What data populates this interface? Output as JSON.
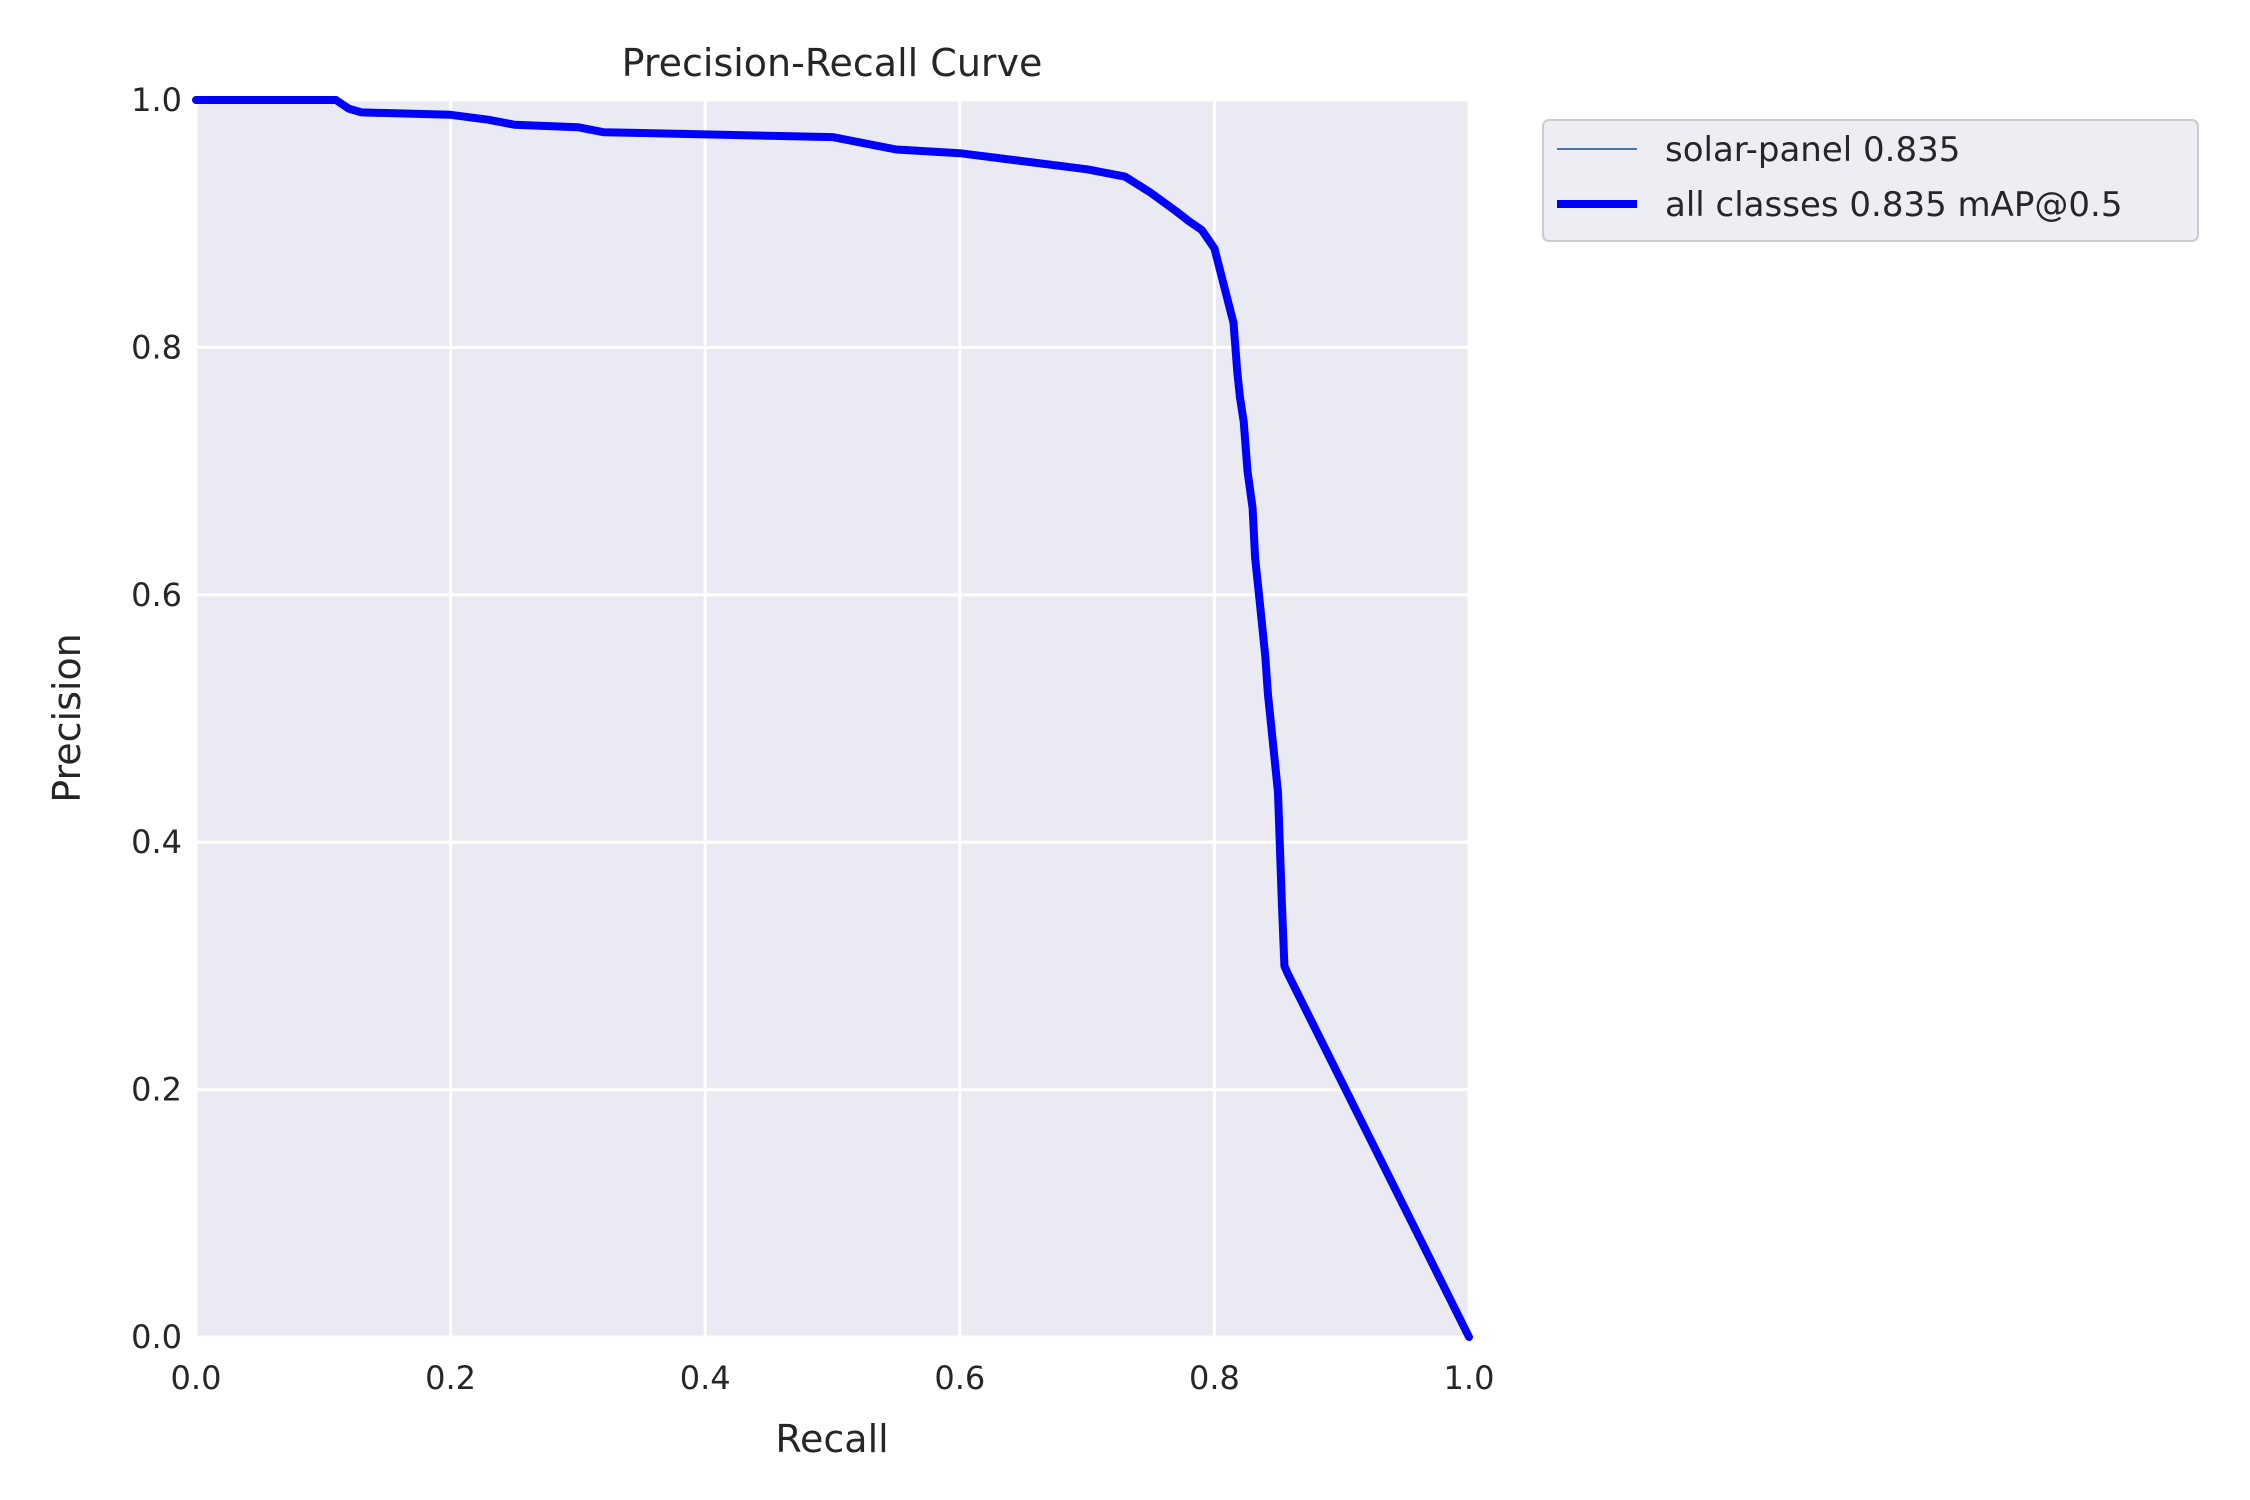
{
  "chart_data": {
    "type": "line",
    "title": "Precision-Recall Curve",
    "xlabel": "Recall",
    "ylabel": "Precision",
    "xlim": [
      0,
      1
    ],
    "ylim": [
      0,
      1
    ],
    "xticks": [
      "0.0",
      "0.2",
      "0.4",
      "0.6",
      "0.8",
      "1.0"
    ],
    "yticks": [
      "0.0",
      "0.2",
      "0.4",
      "0.6",
      "0.8",
      "1.0"
    ],
    "grid": true,
    "background": "#eaeaf2",
    "legend_position": "outside-top-right",
    "series": [
      {
        "name": "solar-panel 0.835",
        "color": "#4c72b0",
        "x": [
          0.0,
          0.11,
          0.12,
          0.13,
          0.2,
          0.23,
          0.25,
          0.3,
          0.32,
          0.5,
          0.55,
          0.6,
          0.7,
          0.73,
          0.75,
          0.77,
          0.78,
          0.79,
          0.8,
          0.805,
          0.81,
          0.815,
          0.818,
          0.82,
          0.823,
          0.826,
          0.83,
          0.832,
          0.835,
          0.838,
          0.84,
          0.842,
          0.845,
          0.848,
          0.85,
          0.853,
          0.855,
          0.857,
          1.0
        ],
        "y": [
          1.0,
          1.0,
          0.993,
          0.99,
          0.988,
          0.984,
          0.98,
          0.978,
          0.974,
          0.97,
          0.96,
          0.957,
          0.944,
          0.938,
          0.925,
          0.91,
          0.902,
          0.895,
          0.88,
          0.86,
          0.84,
          0.82,
          0.78,
          0.76,
          0.74,
          0.7,
          0.67,
          0.63,
          0.6,
          0.57,
          0.55,
          0.52,
          0.49,
          0.46,
          0.44,
          0.35,
          0.3,
          0.295,
          0.0
        ]
      },
      {
        "name": "all classes 0.835 mAP@0.5",
        "color": "#0000ff",
        "x": [
          0.0,
          0.11,
          0.12,
          0.13,
          0.2,
          0.23,
          0.25,
          0.3,
          0.32,
          0.5,
          0.55,
          0.6,
          0.7,
          0.73,
          0.75,
          0.77,
          0.78,
          0.79,
          0.8,
          0.805,
          0.81,
          0.815,
          0.818,
          0.82,
          0.823,
          0.826,
          0.83,
          0.832,
          0.835,
          0.838,
          0.84,
          0.842,
          0.845,
          0.848,
          0.85,
          0.853,
          0.855,
          0.857,
          1.0
        ],
        "y": [
          1.0,
          1.0,
          0.993,
          0.99,
          0.988,
          0.984,
          0.98,
          0.978,
          0.974,
          0.97,
          0.96,
          0.957,
          0.944,
          0.938,
          0.925,
          0.91,
          0.902,
          0.895,
          0.88,
          0.86,
          0.84,
          0.82,
          0.78,
          0.76,
          0.74,
          0.7,
          0.67,
          0.63,
          0.6,
          0.57,
          0.55,
          0.52,
          0.49,
          0.46,
          0.44,
          0.35,
          0.3,
          0.295,
          0.0
        ]
      }
    ]
  }
}
